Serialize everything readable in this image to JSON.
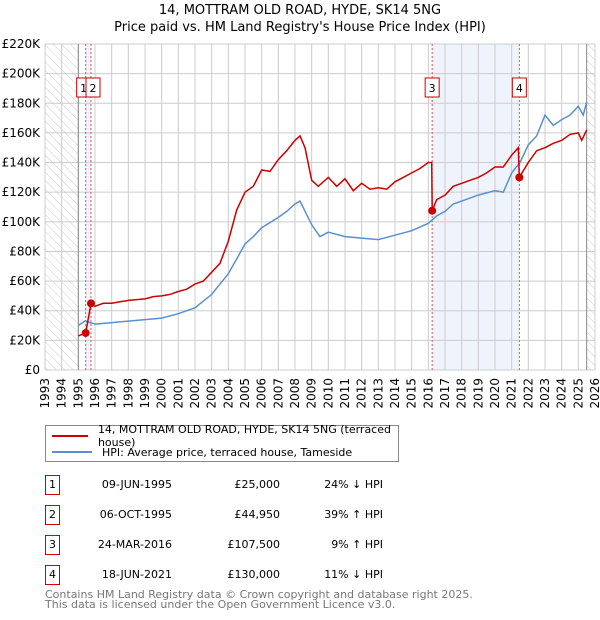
{
  "chart_data": {
    "type": "line",
    "title": "14, MOTTRAM OLD ROAD, HYDE, SK14 5NG",
    "subtitle": "Price paid vs. HM Land Registry's House Price Index (HPI)",
    "xlim": [
      1993,
      2026
    ],
    "ylim": [
      0,
      220000
    ],
    "y_ticks": [
      0,
      20000,
      40000,
      60000,
      80000,
      100000,
      120000,
      140000,
      160000,
      180000,
      200000,
      220000
    ],
    "y_tick_labels": [
      "£0",
      "£20K",
      "£40K",
      "£60K",
      "£80K",
      "£100K",
      "£120K",
      "£140K",
      "£160K",
      "£180K",
      "£200K",
      "£220K"
    ],
    "x_tick_labels": [
      "1993",
      "1994",
      "1995",
      "1996",
      "1997",
      "1998",
      "1999",
      "2000",
      "2001",
      "2002",
      "2003",
      "2004",
      "2005",
      "2006",
      "2007",
      "2008",
      "2009",
      "2010",
      "2011",
      "2012",
      "2013",
      "2014",
      "2015",
      "2016",
      "2017",
      "2018",
      "2019",
      "2020",
      "2021",
      "2022",
      "2023",
      "2024",
      "2025",
      "2026"
    ],
    "grid": true,
    "legend_placement": "below",
    "series": [
      {
        "name": "14, MOTTRAM OLD ROAD, HYDE, SK14 5NG (terraced house)",
        "color": "#cc0000",
        "points": [
          [
            1995.0,
            23000
          ],
          [
            1995.44,
            25000
          ],
          [
            1995.76,
            44950
          ],
          [
            1996,
            43000
          ],
          [
            1996.5,
            45000
          ],
          [
            1997,
            45000
          ],
          [
            1997.5,
            46000
          ],
          [
            1998,
            47000
          ],
          [
            1998.5,
            47500
          ],
          [
            1999,
            48000
          ],
          [
            1999.5,
            49500
          ],
          [
            2000,
            50000
          ],
          [
            2000.5,
            51000
          ],
          [
            2001,
            53000
          ],
          [
            2001.5,
            54500
          ],
          [
            2002,
            58000
          ],
          [
            2002.5,
            60000
          ],
          [
            2003,
            66000
          ],
          [
            2003.5,
            72000
          ],
          [
            2004,
            87000
          ],
          [
            2004.5,
            108000
          ],
          [
            2005,
            120000
          ],
          [
            2005.5,
            124000
          ],
          [
            2006,
            135000
          ],
          [
            2006.5,
            134000
          ],
          [
            2007,
            142000
          ],
          [
            2007.5,
            148000
          ],
          [
            2008,
            155000
          ],
          [
            2008.3,
            158000
          ],
          [
            2008.6,
            150000
          ],
          [
            2009,
            128000
          ],
          [
            2009.4,
            124000
          ],
          [
            2010,
            130000
          ],
          [
            2010.5,
            124000
          ],
          [
            2011,
            129000
          ],
          [
            2011.5,
            121000
          ],
          [
            2012,
            126000
          ],
          [
            2012.5,
            122000
          ],
          [
            2013,
            123000
          ],
          [
            2013.5,
            122000
          ],
          [
            2014,
            127000
          ],
          [
            2014.5,
            130000
          ],
          [
            2015,
            133000
          ],
          [
            2015.5,
            136000
          ],
          [
            2016,
            140000
          ],
          [
            2016.2,
            140000
          ],
          [
            2016.23,
            107500
          ],
          [
            2016.5,
            115000
          ],
          [
            2017,
            118000
          ],
          [
            2017.5,
            124000
          ],
          [
            2018,
            126000
          ],
          [
            2018.5,
            128000
          ],
          [
            2019,
            130000
          ],
          [
            2019.5,
            133000
          ],
          [
            2020,
            137000
          ],
          [
            2020.5,
            137000
          ],
          [
            2021,
            145000
          ],
          [
            2021.4,
            150000
          ],
          [
            2021.46,
            130000
          ],
          [
            2022,
            140000
          ],
          [
            2022.5,
            148000
          ],
          [
            2023,
            150000
          ],
          [
            2023.5,
            153000
          ],
          [
            2024,
            155000
          ],
          [
            2024.5,
            159000
          ],
          [
            2025,
            160000
          ],
          [
            2025.2,
            155000
          ],
          [
            2025.5,
            162000
          ]
        ]
      },
      {
        "name": "HPI: Average price, terraced house, Tameside",
        "color": "#5b8fd0",
        "points": [
          [
            1995.0,
            30000
          ],
          [
            1995.4,
            33000
          ],
          [
            1996,
            31000
          ],
          [
            1997,
            32000
          ],
          [
            1998,
            33000
          ],
          [
            1999,
            34000
          ],
          [
            2000,
            35000
          ],
          [
            2001,
            38000
          ],
          [
            2002,
            42000
          ],
          [
            2003,
            51000
          ],
          [
            2004,
            65000
          ],
          [
            2004.5,
            75000
          ],
          [
            2005,
            85000
          ],
          [
            2005.5,
            90000
          ],
          [
            2006,
            96000
          ],
          [
            2007,
            103000
          ],
          [
            2007.5,
            107000
          ],
          [
            2008,
            112000
          ],
          [
            2008.3,
            114000
          ],
          [
            2009,
            98000
          ],
          [
            2009.5,
            90000
          ],
          [
            2010,
            93000
          ],
          [
            2011,
            90000
          ],
          [
            2012,
            89000
          ],
          [
            2013,
            88000
          ],
          [
            2014,
            91000
          ],
          [
            2015,
            94000
          ],
          [
            2016,
            99000
          ],
          [
            2016.5,
            104000
          ],
          [
            2017,
            107000
          ],
          [
            2017.5,
            112000
          ],
          [
            2018,
            114000
          ],
          [
            2019,
            118000
          ],
          [
            2020,
            121000
          ],
          [
            2020.5,
            120000
          ],
          [
            2021,
            133000
          ],
          [
            2021.5,
            140000
          ],
          [
            2022,
            152000
          ],
          [
            2022.5,
            158000
          ],
          [
            2023,
            172000
          ],
          [
            2023.5,
            165000
          ],
          [
            2024,
            169000
          ],
          [
            2024.5,
            172000
          ],
          [
            2025,
            178000
          ],
          [
            2025.3,
            172000
          ],
          [
            2025.5,
            181000
          ]
        ]
      }
    ],
    "sales": [
      {
        "num": "1",
        "x": 1995.44,
        "y": 25000,
        "date": "09-JUN-1995",
        "price": "£25,000",
        "hpi": "24% ↓ HPI"
      },
      {
        "num": "2",
        "x": 1995.76,
        "y": 44950,
        "date": "06-OCT-1995",
        "price": "£44,950",
        "hpi": "39% ↑ HPI"
      },
      {
        "num": "3",
        "x": 2016.23,
        "y": 107500,
        "date": "24-MAR-2016",
        "price": "£107,500",
        "hpi": "9% ↑ HPI"
      },
      {
        "num": "4",
        "x": 2021.46,
        "y": 130000,
        "date": "18-JUN-2021",
        "price": "£130,000",
        "hpi": "11% ↓ HPI"
      }
    ],
    "hatched_before": 1995.0,
    "hatched_after": 2025.5
  },
  "footer": {
    "line1": "Contains HM Land Registry data © Crown copyright and database right 2025.",
    "line2": "This data is licensed under the Open Government Licence v3.0."
  }
}
